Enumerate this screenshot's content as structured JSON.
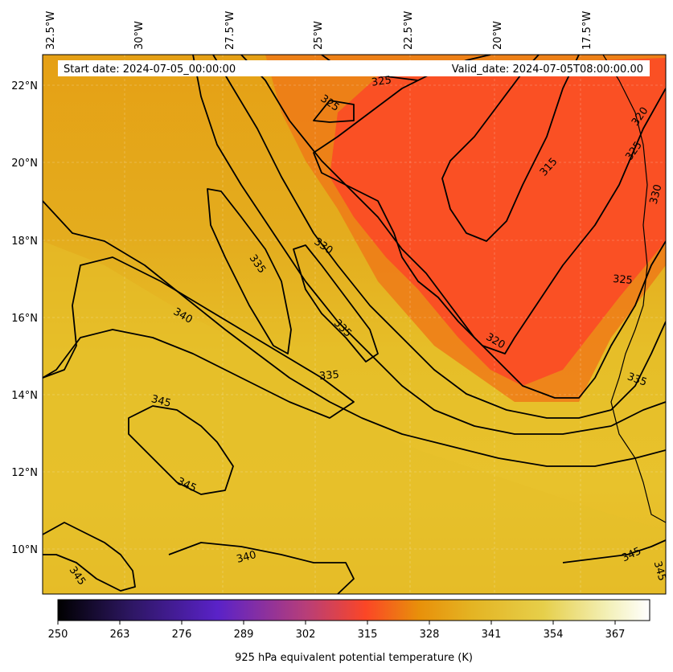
{
  "header": {
    "start_date": "Start date: 2024-07-05_00:00:00",
    "valid_date": "Valid_date: 2024-07-05T08:00:00.00"
  },
  "map": {
    "longitude_labels": [
      "32.5°W",
      "30°W",
      "27.5°W",
      "25°W",
      "22.5°W",
      "20°W",
      "17.5°W"
    ],
    "latitude_labels": [
      "22°N",
      "20°N",
      "18°N",
      "16°N",
      "14°N",
      "12°N",
      "10°N"
    ],
    "contour_labels": [
      {
        "text": "325"
      },
      {
        "text": "325"
      },
      {
        "text": "320"
      },
      {
        "text": "325"
      },
      {
        "text": "330"
      },
      {
        "text": "315"
      },
      {
        "text": "330"
      },
      {
        "text": "335"
      },
      {
        "text": "325"
      },
      {
        "text": "340"
      },
      {
        "text": "335"
      },
      {
        "text": "320"
      },
      {
        "text": "335"
      },
      {
        "text": "335"
      },
      {
        "text": "345"
      },
      {
        "text": "345"
      },
      {
        "text": "340"
      },
      {
        "text": "345"
      },
      {
        "text": "345"
      },
      {
        "text": "345"
      }
    ],
    "colors": {
      "cool_core": "#fb4626",
      "warm_ridge": "#e8ba28",
      "mid_orange": "#e9a412",
      "contour_line": "#000000"
    }
  },
  "colorbar": {
    "tick_labels": [
      "250",
      "263",
      "276",
      "289",
      "302",
      "315",
      "328",
      "341",
      "354",
      "367"
    ],
    "title": "925 hPa equivalent potential temperature (K)",
    "colors": [
      "#000000",
      "#2c1660",
      "#5a22c8",
      "#b83e78",
      "#fb4626",
      "#e8900a",
      "#e4b423",
      "#e6cf4a",
      "#f3f0b8",
      "#ffffff"
    ]
  }
}
